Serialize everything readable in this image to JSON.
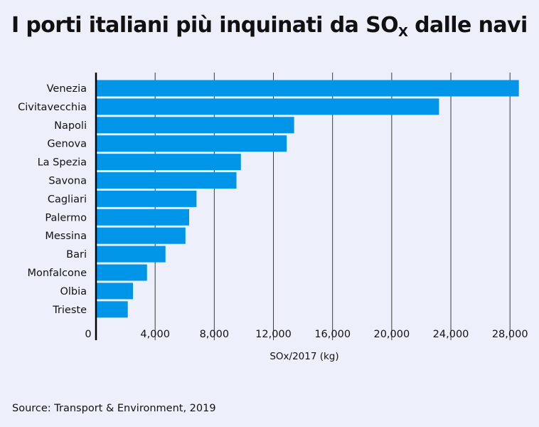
{
  "title": {
    "main": "I porti italiani più inquinati da SO",
    "subscript": "X",
    "suffix": " dalle navi"
  },
  "source": "Source: Transport & Environment, 2019",
  "colors": {
    "bar": "#0095e8",
    "background": "#edf0fa",
    "grid": "#3a3a3a",
    "axis": "#000000"
  },
  "chart_data": {
    "type": "bar",
    "orientation": "horizontal",
    "categories": [
      "Venezia",
      "Civitavecchia",
      "Napoli",
      "Genova",
      "La Spezia",
      "Savona",
      "Cagliari",
      "Palermo",
      "Messina",
      "Bari",
      "Monfalcone",
      "Olbia",
      "Trieste"
    ],
    "values": [
      28600,
      23200,
      13400,
      12900,
      9800,
      9500,
      6800,
      6300,
      6050,
      4700,
      3450,
      2500,
      2150
    ],
    "xlabel": "SOx/2017 (kg)",
    "ylabel": "",
    "xlim": [
      0,
      29000
    ],
    "xticks": [
      0,
      4000,
      8000,
      12000,
      16000,
      20000,
      24000,
      28000
    ],
    "xtick_labels": [
      "0",
      "4,000",
      "8,000",
      "12,000",
      "16,000",
      "20,000",
      "24,000",
      "28,000"
    ],
    "grid": "vertical"
  }
}
